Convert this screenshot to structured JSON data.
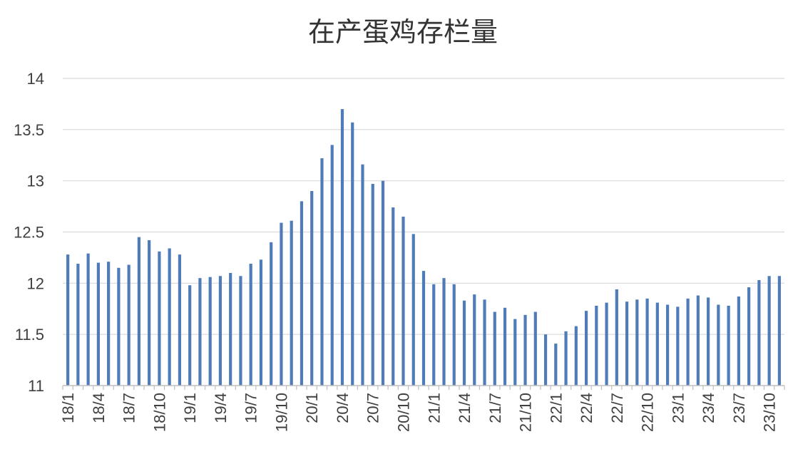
{
  "chart_data": {
    "type": "bar",
    "title": "在产蛋鸡存栏量",
    "xlabel": "",
    "ylabel": "",
    "ylim": [
      11,
      14
    ],
    "yticks": [
      "11",
      "11.5",
      "12",
      "12.5",
      "13",
      "13.5",
      "14"
    ],
    "grid": true,
    "legend": "none",
    "bar_color": "#4F7CB8",
    "categories": [
      "18/1",
      "18/2",
      "18/3",
      "18/4",
      "18/5",
      "18/6",
      "18/7",
      "18/8",
      "18/9",
      "18/10",
      "18/11",
      "18/12",
      "19/1",
      "19/2",
      "19/3",
      "19/4",
      "19/5",
      "19/6",
      "19/7",
      "19/8",
      "19/9",
      "19/10",
      "19/11",
      "19/12",
      "20/1",
      "20/2",
      "20/3",
      "20/4",
      "20/5",
      "20/6",
      "20/7",
      "20/8",
      "20/9",
      "20/10",
      "20/11",
      "20/12",
      "21/1",
      "21/2",
      "21/3",
      "21/4",
      "21/5",
      "21/6",
      "21/7",
      "21/8",
      "21/9",
      "21/10",
      "21/11",
      "21/12",
      "22/1",
      "22/2",
      "22/3",
      "22/4",
      "22/5",
      "22/6",
      "22/7",
      "22/8",
      "22/9",
      "22/10",
      "22/11",
      "22/12",
      "23/1",
      "23/2",
      "23/3",
      "23/4",
      "23/5",
      "23/6",
      "23/7",
      "23/8",
      "23/9",
      "23/10",
      "23/11"
    ],
    "tick_labels": [
      "18/1",
      "18/4",
      "18/7",
      "18/10",
      "19/1",
      "19/4",
      "19/7",
      "19/10",
      "20/1",
      "20/4",
      "20/7",
      "20/10",
      "21/1",
      "21/4",
      "21/7",
      "21/10",
      "22/1",
      "22/4",
      "22/7",
      "22/10",
      "23/1",
      "23/4",
      "23/7",
      "23/10"
    ],
    "values": [
      12.28,
      12.19,
      12.29,
      12.2,
      12.21,
      12.15,
      12.18,
      12.45,
      12.42,
      12.31,
      12.34,
      12.28,
      11.98,
      12.05,
      12.06,
      12.07,
      12.1,
      12.07,
      12.19,
      12.23,
      12.4,
      12.59,
      12.61,
      12.8,
      12.9,
      13.22,
      13.35,
      13.7,
      13.57,
      13.16,
      12.97,
      13.0,
      12.74,
      12.65,
      12.48,
      12.12,
      11.99,
      12.05,
      11.99,
      11.83,
      11.89,
      11.84,
      11.72,
      11.76,
      11.65,
      11.69,
      11.72,
      11.5,
      11.41,
      11.53,
      11.58,
      11.73,
      11.78,
      11.81,
      11.94,
      11.82,
      11.84,
      11.85,
      11.81,
      11.79,
      11.77,
      11.85,
      11.88,
      11.86,
      11.79,
      11.78,
      11.87,
      11.96,
      12.03,
      12.07,
      12.07
    ]
  }
}
